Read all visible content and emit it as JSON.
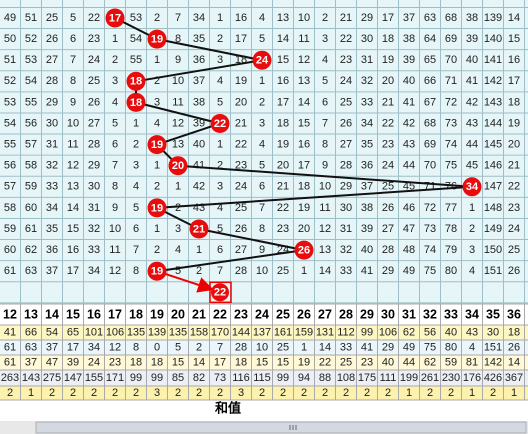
{
  "grid": {
    "rows": [
      {
        "cells": [
          49,
          51,
          25,
          5,
          22,
          null,
          53,
          2,
          7,
          34,
          1,
          16,
          4,
          13,
          10,
          2,
          21,
          29,
          17,
          37,
          63,
          68,
          38,
          139,
          14
        ],
        "hit": 17
      },
      {
        "cells": [
          50,
          52,
          26,
          6,
          23,
          1,
          54,
          null,
          8,
          35,
          2,
          17,
          5,
          14,
          11,
          3,
          22,
          30,
          18,
          38,
          64,
          69,
          39,
          140,
          15
        ],
        "hit": 19
      },
      {
        "cells": [
          51,
          53,
          27,
          7,
          24,
          2,
          55,
          1,
          9,
          36,
          3,
          18,
          null,
          15,
          12,
          4,
          23,
          31,
          19,
          39,
          65,
          70,
          40,
          141,
          16
        ],
        "hit": 24
      },
      {
        "cells": [
          52,
          54,
          28,
          8,
          25,
          3,
          null,
          2,
          10,
          37,
          4,
          19,
          1,
          16,
          13,
          5,
          24,
          32,
          20,
          40,
          66,
          71,
          41,
          142,
          17
        ],
        "hit": 18
      },
      {
        "cells": [
          53,
          55,
          29,
          9,
          26,
          4,
          null,
          3,
          11,
          38,
          5,
          20,
          2,
          17,
          14,
          6,
          25,
          33,
          21,
          41,
          67,
          72,
          42,
          143,
          18
        ],
        "hit": 18
      },
      {
        "cells": [
          54,
          56,
          30,
          10,
          27,
          5,
          1,
          4,
          12,
          39,
          null,
          21,
          3,
          18,
          15,
          7,
          26,
          34,
          22,
          42,
          68,
          73,
          43,
          144,
          19
        ],
        "hit": 22
      },
      {
        "cells": [
          55,
          57,
          31,
          11,
          28,
          6,
          2,
          null,
          13,
          40,
          1,
          22,
          4,
          19,
          16,
          8,
          27,
          35,
          23,
          43,
          69,
          74,
          44,
          145,
          20
        ],
        "hit": 19
      },
      {
        "cells": [
          56,
          58,
          32,
          12,
          29,
          7,
          3,
          1,
          null,
          41,
          2,
          23,
          5,
          20,
          17,
          9,
          28,
          36,
          24,
          44,
          70,
          75,
          45,
          146,
          21
        ],
        "hit": 20
      },
      {
        "cells": [
          57,
          59,
          33,
          13,
          30,
          8,
          4,
          2,
          1,
          42,
          3,
          24,
          6,
          21,
          18,
          10,
          29,
          37,
          25,
          45,
          71,
          76,
          null,
          147,
          22
        ],
        "hit": 34
      },
      {
        "cells": [
          58,
          60,
          34,
          14,
          31,
          9,
          5,
          null,
          2,
          43,
          4,
          25,
          7,
          22,
          19,
          11,
          30,
          38,
          26,
          46,
          72,
          77,
          1,
          148,
          23
        ],
        "hit": 19
      },
      {
        "cells": [
          59,
          61,
          35,
          15,
          32,
          10,
          6,
          1,
          3,
          null,
          5,
          26,
          8,
          23,
          20,
          12,
          31,
          39,
          27,
          47,
          73,
          78,
          2,
          149,
          24
        ],
        "hit": 21
      },
      {
        "cells": [
          60,
          62,
          36,
          16,
          33,
          11,
          7,
          2,
          4,
          1,
          6,
          27,
          9,
          24,
          null,
          13,
          32,
          40,
          28,
          48,
          74,
          79,
          3,
          150,
          25
        ],
        "hit": 26
      },
      {
        "cells": [
          61,
          63,
          37,
          17,
          34,
          12,
          8,
          null,
          5,
          2,
          7,
          28,
          10,
          25,
          1,
          14,
          33,
          41,
          29,
          49,
          75,
          80,
          4,
          151,
          26
        ],
        "hit": 19
      }
    ],
    "next_hit": 22
  },
  "columns": [
    12,
    13,
    14,
    15,
    16,
    17,
    18,
    19,
    20,
    21,
    22,
    23,
    24,
    25,
    26,
    27,
    28,
    29,
    30,
    31,
    32,
    33,
    34,
    35,
    36
  ],
  "stats": [
    [
      41,
      66,
      54,
      65,
      101,
      106,
      135,
      139,
      135,
      158,
      170,
      144,
      137,
      161,
      159,
      131,
      112,
      99,
      106,
      62,
      56,
      40,
      43,
      30,
      18
    ],
    [
      61,
      63,
      37,
      17,
      34,
      12,
      8,
      0,
      5,
      2,
      7,
      28,
      10,
      25,
      1,
      14,
      33,
      41,
      29,
      49,
      75,
      80,
      4,
      151,
      26
    ],
    [
      61,
      37,
      47,
      39,
      24,
      23,
      18,
      18,
      15,
      14,
      17,
      18,
      15,
      15,
      19,
      22,
      25,
      23,
      40,
      44,
      62,
      59,
      81,
      142,
      14
    ],
    [
      263,
      143,
      275,
      147,
      155,
      171,
      99,
      99,
      85,
      82,
      73,
      116,
      115,
      99,
      94,
      88,
      108,
      175,
      111,
      199,
      261,
      230,
      176,
      426,
      367
    ],
    [
      2,
      1,
      2,
      2,
      2,
      2,
      2,
      3,
      2,
      2,
      2,
      3,
      2,
      2,
      2,
      2,
      2,
      2,
      2,
      1,
      2,
      2,
      1,
      2,
      1
    ]
  ],
  "sum_label": "和值"
}
